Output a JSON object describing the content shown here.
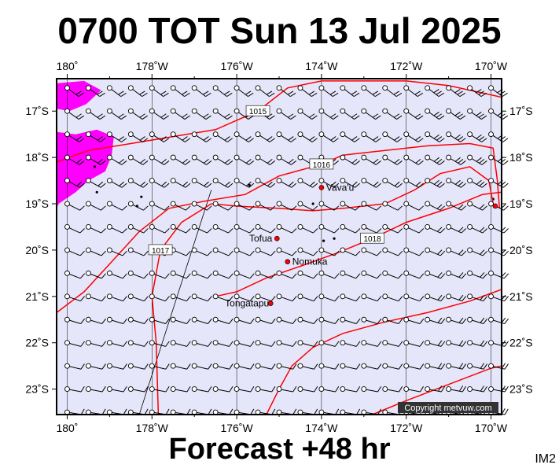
{
  "title": "0700 TOT Sun 13 Jul 2025",
  "footer": "Forecast +48 hr",
  "map_code": "IM2",
  "copyright": "Copyright metvuw.com",
  "colors": {
    "sea": "#e6e6fa",
    "land": "#ff00ff",
    "isobar": "#ff0000",
    "barb": "#000000",
    "place_dot": "#ff0000"
  },
  "lon_labels": [
    "180˚",
    "178˚W",
    "176˚W",
    "174˚W",
    "172˚W",
    "170˚W"
  ],
  "lat_labels": [
    "17˚S",
    "18˚S",
    "19˚S",
    "20˚S",
    "21˚S",
    "22˚S",
    "23˚S"
  ],
  "extent": {
    "lon_west": 180.25,
    "lon_east": 169.75,
    "lat_north": 16.3,
    "lat_south": 23.55
  },
  "places": [
    {
      "name": "Vava'u",
      "lon": 174.0,
      "lat": 18.65
    },
    {
      "name": "Tofua",
      "lon": 175.05,
      "lat": 19.75
    },
    {
      "name": "Nomuka",
      "lon": 174.8,
      "lat": 20.25
    },
    {
      "name": "Tongatapu",
      "lon": 175.2,
      "lat": 21.15
    },
    {
      "name": "",
      "lon": 169.9,
      "lat": 19.05
    }
  ],
  "isobars": [
    {
      "label": "1015",
      "points": [
        [
          180.25,
          18.1
        ],
        [
          179.5,
          17.85
        ],
        [
          178.5,
          17.7
        ],
        [
          177.5,
          17.55
        ],
        [
          176.5,
          17.4
        ],
        [
          175.5,
          17.0
        ],
        [
          174.8,
          16.5
        ],
        [
          174.0,
          16.35
        ],
        [
          172.0,
          16.35
        ],
        [
          171.0,
          16.45
        ],
        [
          169.75,
          16.7
        ]
      ]
    },
    {
      "label": "1016",
      "points": [
        [
          180.25,
          21.35
        ],
        [
          179.6,
          20.9
        ],
        [
          179.0,
          20.3
        ],
        [
          178.3,
          19.6
        ],
        [
          177.6,
          19.1
        ],
        [
          176.8,
          18.95
        ],
        [
          175.8,
          18.8
        ],
        [
          175.0,
          18.4
        ],
        [
          174.0,
          18.15
        ],
        [
          173.5,
          17.95
        ],
        [
          172.5,
          17.85
        ],
        [
          171.5,
          17.75
        ],
        [
          170.5,
          17.7
        ],
        [
          169.95,
          17.8
        ],
        [
          169.85,
          18.5
        ],
        [
          169.8,
          19.1
        ]
      ]
    },
    {
      "label": "1017",
      "points": [
        [
          177.85,
          23.55
        ],
        [
          177.9,
          22.0
        ],
        [
          178.0,
          21.0
        ],
        [
          177.8,
          20.0
        ],
        [
          177.3,
          19.4
        ],
        [
          176.6,
          19.0
        ]
      ]
    },
    {
      "label": "",
      "points": [
        [
          176.6,
          19.0
        ],
        [
          176.0,
          19.05
        ],
        [
          175.0,
          19.1
        ],
        [
          174.2,
          19.15
        ],
        [
          173.5,
          19.1
        ],
        [
          172.5,
          19.0
        ],
        [
          171.8,
          18.7
        ],
        [
          171.2,
          18.35
        ],
        [
          170.5,
          18.2
        ],
        [
          170.05,
          18.5
        ],
        [
          169.95,
          19.0
        ]
      ]
    },
    {
      "label": "1018",
      "points": [
        [
          176.5,
          21.0
        ],
        [
          176.0,
          20.9
        ],
        [
          175.3,
          20.6
        ],
        [
          174.5,
          20.35
        ],
        [
          173.6,
          20.05
        ],
        [
          172.8,
          19.75
        ],
        [
          172.0,
          19.4
        ],
        [
          171.0,
          19.1
        ],
        [
          170.2,
          18.8
        ],
        [
          169.75,
          18.75
        ]
      ]
    },
    {
      "label": "",
      "points": [
        [
          175.3,
          23.55
        ],
        [
          175.0,
          23.0
        ],
        [
          174.7,
          22.5
        ],
        [
          174.2,
          22.1
        ],
        [
          173.5,
          21.8
        ],
        [
          172.5,
          21.55
        ],
        [
          171.5,
          21.35
        ],
        [
          170.5,
          21.1
        ],
        [
          169.75,
          20.85
        ]
      ]
    },
    {
      "label": "",
      "points": [
        [
          172.8,
          23.55
        ],
        [
          172.0,
          23.25
        ],
        [
          171.0,
          22.9
        ],
        [
          170.0,
          22.55
        ],
        [
          169.75,
          22.5
        ]
      ]
    }
  ],
  "land_polygons": [
    [
      [
        180.25,
        16.4
      ],
      [
        179.6,
        16.35
      ],
      [
        179.2,
        16.55
      ],
      [
        179.55,
        16.85
      ],
      [
        179.95,
        17.0
      ],
      [
        180.25,
        16.95
      ]
    ],
    [
      [
        180.25,
        17.45
      ],
      [
        179.8,
        17.5
      ],
      [
        179.3,
        17.4
      ],
      [
        178.9,
        17.55
      ],
      [
        178.95,
        17.95
      ],
      [
        179.1,
        18.3
      ],
      [
        179.5,
        18.5
      ],
      [
        179.8,
        18.75
      ],
      [
        180.2,
        19.0
      ],
      [
        180.25,
        19.1
      ]
    ]
  ],
  "small_islands": [
    [
      179.35,
      18.2
    ],
    [
      179.3,
      18.75
    ],
    [
      178.35,
      19.05
    ],
    [
      178.25,
      18.85
    ],
    [
      175.7,
      18.6
    ],
    [
      174.2,
      19.0
    ],
    [
      173.95,
      19.8
    ],
    [
      173.7,
      19.75
    ],
    [
      169.95,
      18.9
    ]
  ]
}
